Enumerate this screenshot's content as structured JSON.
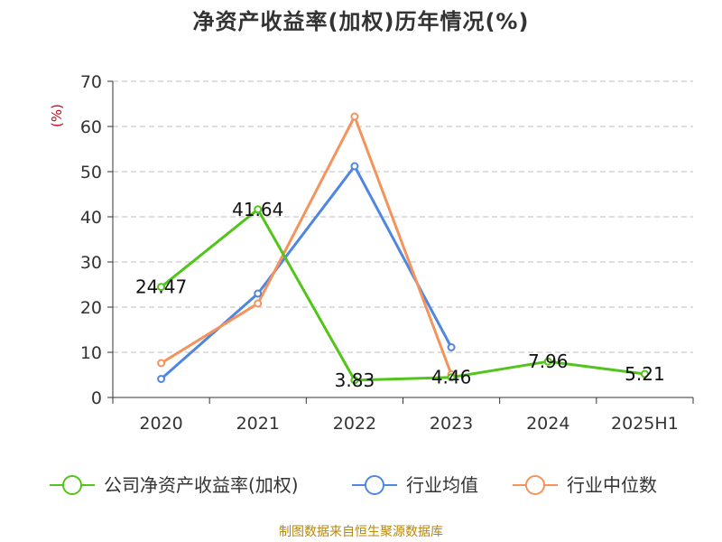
{
  "chart_data": {
    "type": "line",
    "title": "净资产收益率(加权)历年情况(%)",
    "ylabel": "(%)",
    "xlabel": "",
    "categories": [
      "2020",
      "2021",
      "2022",
      "2023",
      "2024",
      "2025H1"
    ],
    "ylim": [
      0,
      70
    ],
    "yticks": [
      0,
      10,
      20,
      30,
      40,
      50,
      60,
      70
    ],
    "grid": true,
    "legend_position": "bottom",
    "series": [
      {
        "name": "公司净资产收益率(加权)",
        "color": "#52c41a",
        "values": [
          24.47,
          41.64,
          3.83,
          4.46,
          7.96,
          5.21
        ],
        "labels": [
          "24.47",
          "41.64",
          "3.83",
          "4.46",
          "7.96",
          "5.21"
        ]
      },
      {
        "name": "行业均值",
        "color": "#4f86e0",
        "values": [
          4.1,
          23.0,
          51.2,
          11.1,
          null,
          null
        ]
      },
      {
        "name": "行业中位数",
        "color": "#f5935c",
        "values": [
          7.6,
          20.8,
          62.2,
          5.1,
          null,
          null
        ]
      }
    ]
  },
  "source_note": "制图数据来自恒生聚源数据库"
}
